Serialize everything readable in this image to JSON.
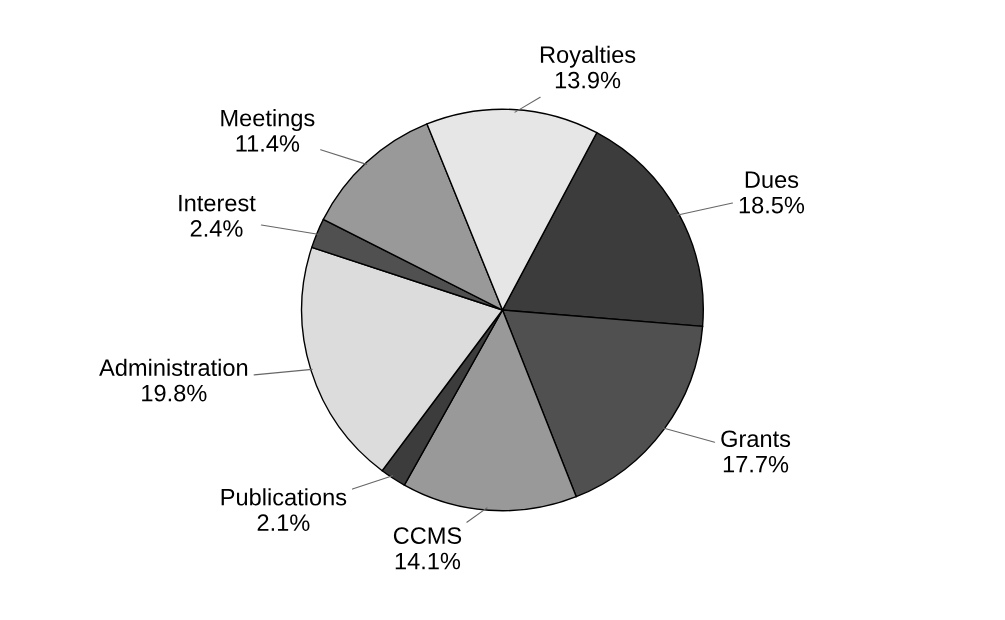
{
  "chart_data": {
    "type": "pie",
    "categories": [
      "Dues",
      "Grants",
      "CCMS",
      "Publications",
      "Administration",
      "Interest",
      "Meetings",
      "Royalties"
    ],
    "values": [
      18.5,
      17.7,
      14.1,
      2.1,
      19.8,
      2.4,
      11.4,
      13.9
    ],
    "value_labels": [
      "18.5%",
      "17.7%",
      "14.1%",
      "2.1%",
      "19.8%",
      "2.4%",
      "11.4%",
      "13.9%"
    ],
    "colors": [
      "#3c3c3c",
      "#505050",
      "#999999",
      "#3c3c3c",
      "#dcdcdc",
      "#505050",
      "#999999",
      "#e6e6e6"
    ],
    "legend": false
  }
}
